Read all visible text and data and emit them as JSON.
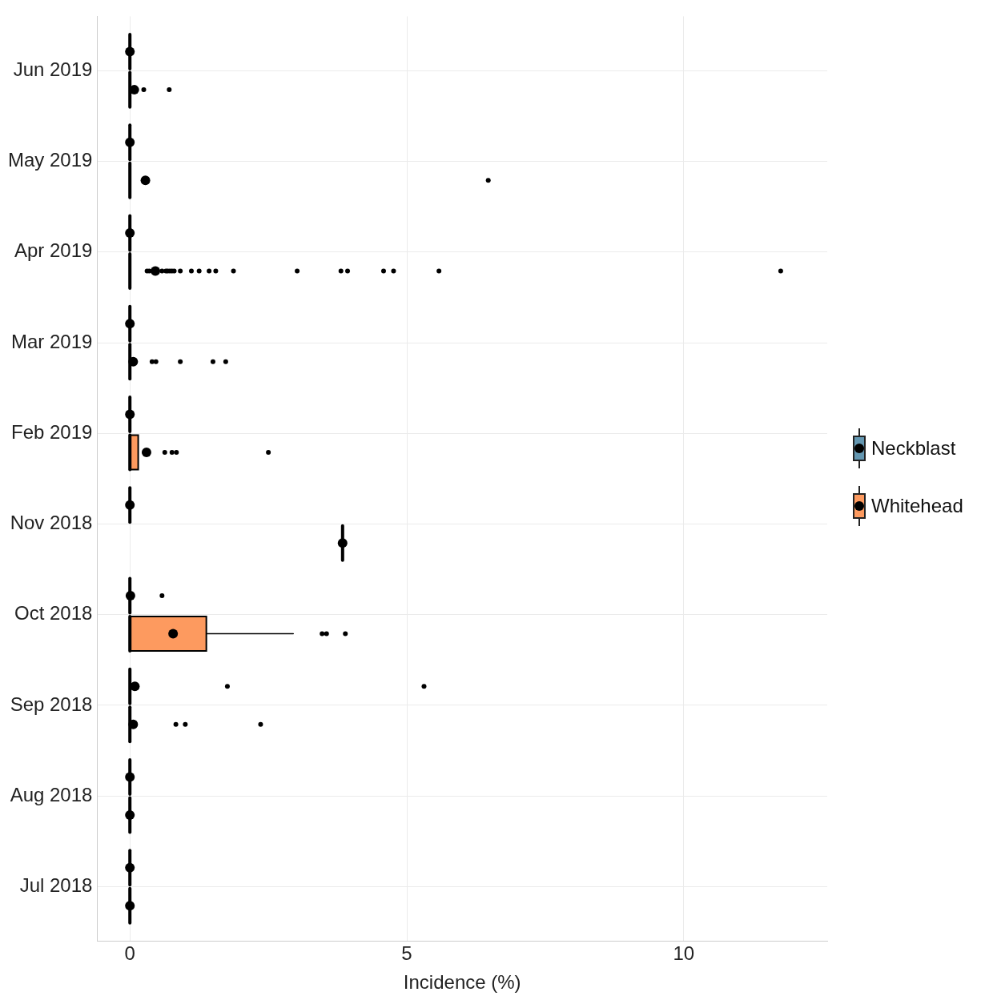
{
  "chart_data": {
    "type": "box",
    "orientation": "horizontal",
    "xlabel": "Incidence (%)",
    "xlim": [
      -0.59,
      12.59
    ],
    "xticks": [
      0,
      5,
      10
    ],
    "grid": true,
    "legend": "right",
    "marker": "circle",
    "categories": [
      "Jun 2019",
      "May 2019",
      "Apr 2019",
      "Mar 2019",
      "Feb 2019",
      "Nov 2018",
      "Oct 2018",
      "Sep 2018",
      "Aug 2018",
      "Jul 2018"
    ],
    "series": [
      {
        "name": "Neckblast",
        "color": "#6497b1",
        "boxes": [
          {
            "low": 0,
            "q1": 0,
            "median": 0,
            "q3": 0,
            "high": 0,
            "mean": 0
          },
          {
            "low": 0,
            "q1": 0,
            "median": 0,
            "q3": 0,
            "high": 0,
            "mean": 0
          },
          {
            "low": 0,
            "q1": 0,
            "median": 0,
            "q3": 0,
            "high": 0,
            "mean": 0
          },
          {
            "low": 0,
            "q1": 0,
            "median": 0,
            "q3": 0,
            "high": 0,
            "mean": 0
          },
          {
            "low": 0,
            "q1": 0,
            "median": 0,
            "q3": 0,
            "high": 0,
            "mean": 0
          },
          {
            "low": 0,
            "q1": 0,
            "median": 0,
            "q3": 0,
            "high": 0,
            "mean": 0
          },
          {
            "low": 0,
            "q1": 0,
            "median": 0,
            "q3": 0,
            "high": 0,
            "mean": 0.01,
            "outliers": [
              0.58
            ]
          },
          {
            "low": 0,
            "q1": 0,
            "median": 0,
            "q3": 0,
            "high": 0,
            "mean": 0.09,
            "outliers": [
              1.76,
              5.31
            ]
          },
          {
            "low": 0,
            "q1": 0,
            "median": 0,
            "q3": 0,
            "high": 0,
            "mean": 0
          },
          {
            "low": 0,
            "q1": 0,
            "median": 0,
            "q3": 0,
            "high": 0,
            "mean": 0
          }
        ]
      },
      {
        "name": "Whitehead",
        "color": "#fd9a5f",
        "boxes": [
          {
            "low": 0,
            "q1": 0,
            "median": 0,
            "q3": 0,
            "high": 0,
            "mean": 0.08,
            "outliers": [
              0.25,
              0.71
            ]
          },
          {
            "low": 0,
            "q1": 0,
            "median": 0,
            "q3": 0,
            "high": 0,
            "mean": 0.28,
            "outliers": [
              6.47
            ]
          },
          {
            "low": 0,
            "q1": 0,
            "median": 0,
            "q3": 0,
            "high": 0,
            "mean": 0.46,
            "outliers": [
              0.31,
              0.35,
              0.58,
              0.65,
              0.68,
              0.72,
              0.76,
              0.8,
              0.91,
              1.11,
              1.25,
              1.43,
              1.55,
              1.87,
              3.02,
              3.81,
              3.93,
              4.58,
              4.76,
              5.58,
              11.75
            ]
          },
          {
            "low": 0,
            "q1": 0,
            "median": 0,
            "q3": 0,
            "high": 0,
            "mean": 0.06,
            "outliers": [
              0.4,
              0.47,
              0.91,
              1.5,
              1.73
            ]
          },
          {
            "low": 0,
            "q1": 0,
            "median": 0,
            "q3": 0.15,
            "high": 0.15,
            "mean": 0.3,
            "outliers": [
              0.63,
              0.76,
              0.84,
              2.5
            ]
          },
          {
            "low": 3.84,
            "q1": 3.84,
            "median": 3.84,
            "q3": 3.84,
            "high": 3.84,
            "mean": 3.84
          },
          {
            "low": 0,
            "q1": 0,
            "median": 0,
            "q3": 1.38,
            "high": 2.95,
            "mean": 0.78,
            "outliers": [
              3.47,
              3.55,
              3.89
            ]
          },
          {
            "low": 0,
            "q1": 0,
            "median": 0,
            "q3": 0,
            "high": 0,
            "mean": 0.06,
            "outliers": [
              0.83,
              1.0,
              2.36
            ]
          },
          {
            "low": 0,
            "q1": 0,
            "median": 0,
            "q3": 0,
            "high": 0,
            "mean": 0
          },
          {
            "low": 0,
            "q1": 0,
            "median": 0,
            "q3": 0,
            "high": 0,
            "mean": 0
          }
        ]
      }
    ]
  }
}
